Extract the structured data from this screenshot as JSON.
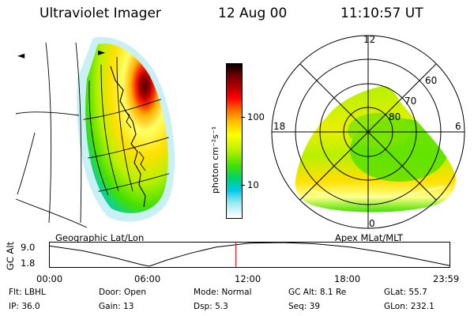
{
  "header": {
    "instrument": "Ultraviolet Imager",
    "date": "12 Aug 00",
    "time": "11:10:57 UT"
  },
  "colorbar": {
    "unit_label": "photon cm⁻²s⁻¹",
    "tick_labels": [
      "100",
      "10"
    ],
    "colors": [
      "#000000",
      "#6b0000",
      "#b30000",
      "#ff0000",
      "#ff6a00",
      "#ffc400",
      "#ffff00",
      "#b8f000",
      "#44e000",
      "#00d26c",
      "#00c9e8",
      "#9ae8f0",
      "#ffffff"
    ]
  },
  "left_map": {
    "projection_label": "Geographic Lat/Lon"
  },
  "right_map": {
    "projection_label": "Apex MLat/MLT",
    "mlt_labels": [
      "12",
      "18",
      "6",
      "0"
    ],
    "mlat_labels": [
      "60",
      "70",
      "80"
    ]
  },
  "altitude_plot": {
    "ylabel": "GC Alt",
    "ytick_labels": [
      "9.0",
      "1.8"
    ],
    "ylim": [
      1.8,
      9.0
    ],
    "xtick_labels": [
      "00:00",
      "06:00",
      "12:00",
      "18:00",
      "23:59"
    ],
    "xlim_hours": [
      0,
      24
    ],
    "current_time_hours": 11.18,
    "orbit_points": [
      [
        0,
        8.0
      ],
      [
        2,
        6.5
      ],
      [
        4,
        4.3
      ],
      [
        5.5,
        2.3
      ],
      [
        6,
        1.8
      ],
      [
        7,
        3.6
      ],
      [
        8.5,
        5.8
      ],
      [
        10,
        7.6
      ],
      [
        12,
        8.8
      ],
      [
        14,
        9.0
      ],
      [
        16,
        8.6
      ],
      [
        18,
        7.6
      ],
      [
        20,
        6.0
      ],
      [
        22,
        4.0
      ],
      [
        23.98,
        2.0
      ]
    ]
  },
  "info": {
    "row1": [
      {
        "key": "Flt:",
        "value": "LBHL"
      },
      {
        "key": "Door:",
        "value": "Open"
      },
      {
        "key": "Mode:",
        "value": "Normal"
      },
      {
        "key": "GC Alt:",
        "value": "8.1 Re"
      },
      {
        "key": "GLat:",
        "value": "55.7"
      }
    ],
    "row2": [
      {
        "key": "IP:",
        "value": "36.0"
      },
      {
        "key": "Gain:",
        "value": "13"
      },
      {
        "key": "Dsp:",
        "value": "5.3"
      },
      {
        "key": "Seq:",
        "value": "39"
      },
      {
        "key": "GLon:",
        "value": "232.1"
      }
    ]
  }
}
